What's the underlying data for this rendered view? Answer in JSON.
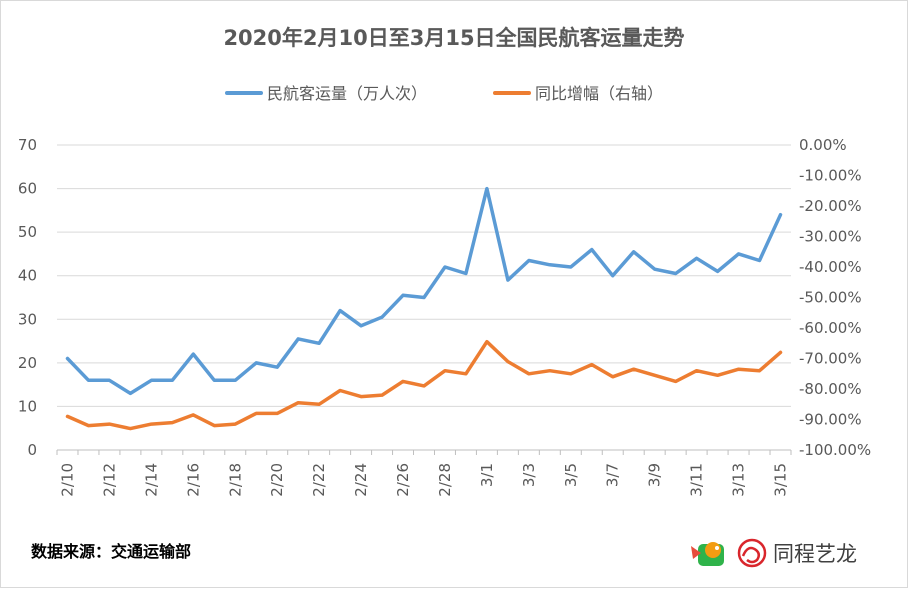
{
  "chart_data": {
    "type": "line",
    "title": "2020年2月10日至3月15日全国民航客运量走势",
    "x": [
      "2/10",
      "2/11",
      "2/12",
      "2/13",
      "2/14",
      "2/15",
      "2/16",
      "2/17",
      "2/18",
      "2/19",
      "2/20",
      "2/21",
      "2/22",
      "2/23",
      "2/24",
      "2/25",
      "2/26",
      "2/27",
      "2/28",
      "2/29",
      "3/1",
      "3/2",
      "3/3",
      "3/4",
      "3/5",
      "3/6",
      "3/7",
      "3/8",
      "3/9",
      "3/10",
      "3/11",
      "3/12",
      "3/13",
      "3/14",
      "3/15"
    ],
    "x_tick_labels": [
      "2/10",
      "2/12",
      "2/14",
      "2/16",
      "2/18",
      "2/20",
      "2/22",
      "2/24",
      "2/26",
      "2/28",
      "3/1",
      "3/3",
      "3/5",
      "3/7",
      "3/9",
      "3/11",
      "3/13",
      "3/15"
    ],
    "y_left": {
      "ylim": [
        0,
        70
      ],
      "ticks": [
        "0",
        "10",
        "20",
        "30",
        "40",
        "50",
        "60",
        "70"
      ]
    },
    "y_right": {
      "ylim": [
        -100,
        0
      ],
      "ticks": [
        "-100.00%",
        "-90.00%",
        "-80.00%",
        "-70.00%",
        "-60.00%",
        "-50.00%",
        "-40.00%",
        "-30.00%",
        "-20.00%",
        "-10.00%",
        "0.00%"
      ]
    },
    "series": [
      {
        "name": "民航客运量（万人次）",
        "axis": "left",
        "color": "#5b9bd5",
        "values": [
          21,
          16,
          16,
          13,
          16,
          16,
          22,
          16,
          16,
          20,
          19,
          25.5,
          24.5,
          32,
          28.5,
          30.5,
          35.5,
          35,
          42,
          40.5,
          60,
          39,
          43.5,
          42.5,
          42,
          46,
          40,
          45.5,
          41.5,
          40.5,
          44,
          41,
          45,
          43.5,
          54
        ]
      },
      {
        "name": "同比增幅（右轴）",
        "axis": "right",
        "color": "#ed7d31",
        "values": [
          -89,
          -92,
          -91.5,
          -93,
          -91.5,
          -91,
          -88.5,
          -92,
          -91.5,
          -88,
          -88,
          -84.5,
          -85,
          -80.5,
          -82.5,
          -82,
          -77.5,
          -79,
          -74,
          -75,
          -64.5,
          -71,
          -75,
          -74,
          -75,
          -72,
          -76,
          -73.5,
          -75.5,
          -77.5,
          -74,
          -75.5,
          -73.5,
          -74,
          -68
        ]
      }
    ],
    "grid": true,
    "legend_position": "top"
  },
  "footer": {
    "source": "数据来源：交通运输部",
    "brand": "同程艺龙"
  }
}
